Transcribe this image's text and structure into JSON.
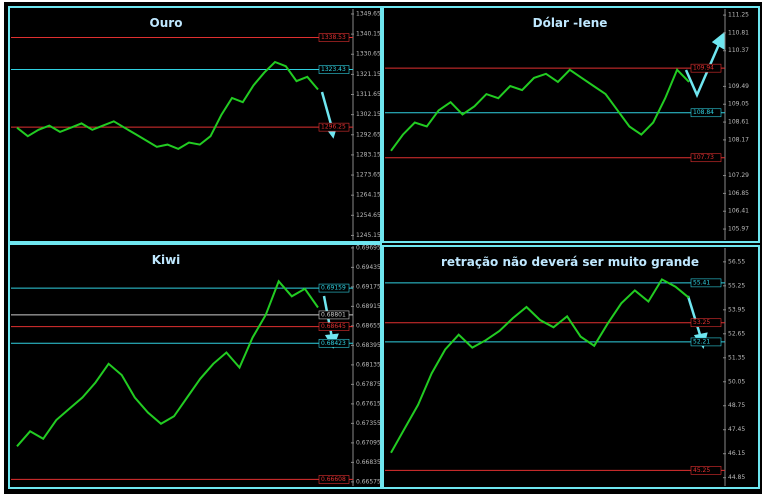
{
  "chart_data": [
    {
      "type": "line",
      "title": "Ouro",
      "color": "#22cc22",
      "values": [
        1296,
        1292,
        1295,
        1297,
        1294,
        1296,
        1298,
        1295,
        1297,
        1299,
        1296,
        1293,
        1290,
        1287,
        1288,
        1286,
        1289,
        1288,
        1292,
        1302,
        1310,
        1308,
        1316,
        1322,
        1327,
        1325,
        1318,
        1320,
        1314
      ],
      "ylim": [
        1243,
        1352
      ],
      "yticks": [
        1349.65,
        1340.15,
        1330.65,
        1321.15,
        1311.65,
        1302.15,
        1292.65,
        1283.15,
        1273.65,
        1264.15,
        1254.65,
        1245.15
      ],
      "levels": [
        {
          "value": 1338.53,
          "color": "#e03030"
        },
        {
          "value": 1323.43,
          "color": "#30d0e0"
        },
        {
          "value": 1296.25,
          "color": "#e03030"
        }
      ]
    },
    {
      "type": "line",
      "title": "Dólar -Iene",
      "color": "#22cc22",
      "values": [
        107.9,
        108.3,
        108.6,
        108.5,
        108.9,
        109.1,
        108.8,
        109.0,
        109.3,
        109.2,
        109.5,
        109.4,
        109.7,
        109.8,
        109.6,
        109.9,
        109.7,
        109.5,
        109.3,
        108.9,
        108.5,
        108.3,
        108.6,
        109.2,
        109.9,
        109.6
      ],
      "ylim": [
        105.7,
        111.4
      ],
      "yticks": [
        111.25,
        110.81,
        110.37,
        109.49,
        109.05,
        108.61,
        108.17,
        107.29,
        106.85,
        106.41,
        105.97
      ],
      "levels": [
        {
          "value": 109.94,
          "color": "#e03030"
        },
        {
          "value": 108.84,
          "color": "#30d0e0"
        },
        {
          "value": 107.73,
          "color": "#e03030"
        }
      ]
    },
    {
      "type": "line",
      "title": "Kiwi",
      "color": "#22cc22",
      "values": [
        0.6705,
        0.6725,
        0.6715,
        0.674,
        0.6755,
        0.677,
        0.679,
        0.6815,
        0.68,
        0.677,
        0.675,
        0.6735,
        0.6745,
        0.677,
        0.6795,
        0.6815,
        0.683,
        0.681,
        0.685,
        0.688,
        0.6925,
        0.6905,
        0.6915,
        0.689
      ],
      "ylim": [
        0.6652,
        0.6972
      ],
      "yticks": [
        0.69695,
        0.69435,
        0.69175,
        0.68915,
        0.68655,
        0.68395,
        0.68135,
        0.67875,
        0.67615,
        0.67355,
        0.67095,
        0.66835,
        0.66575
      ],
      "levels": [
        {
          "value": 0.69159,
          "color": "#30d0e0"
        },
        {
          "value": 0.68801,
          "color": "#cccccc"
        },
        {
          "value": 0.68645,
          "color": "#e03030"
        },
        {
          "value": 0.68423,
          "color": "#30d0e0"
        },
        {
          "value": 0.66608,
          "color": "#e03030"
        }
      ]
    },
    {
      "type": "line",
      "title": "retração não deverá ser muito grande",
      "color": "#22cc22",
      "values": [
        46.2,
        47.5,
        48.8,
        50.5,
        51.8,
        52.6,
        51.9,
        52.3,
        52.8,
        53.5,
        54.1,
        53.4,
        53.0,
        53.6,
        52.5,
        52.0,
        53.2,
        54.3,
        55.0,
        54.4,
        55.6,
        55.2,
        54.6
      ],
      "ylim": [
        44.4,
        57.3
      ],
      "yticks": [
        56.55,
        55.25,
        53.95,
        52.65,
        51.35,
        50.05,
        48.75,
        47.45,
        46.15,
        44.85
      ],
      "levels": [
        {
          "value": 55.41,
          "color": "#30d0e0"
        },
        {
          "value": 53.25,
          "color": "#e03030"
        },
        {
          "value": 52.21,
          "color": "#30d0e0"
        },
        {
          "value": 45.25,
          "color": "#e03030"
        }
      ]
    }
  ]
}
